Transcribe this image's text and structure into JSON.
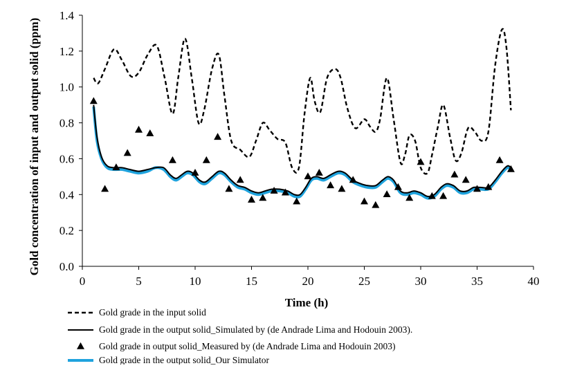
{
  "chart_data": {
    "type": "line",
    "title": "",
    "xlabel": "Time (h)",
    "ylabel": "Gold concentration of input and output solid (ppm)",
    "xlim": [
      0,
      40
    ],
    "ylim": [
      0,
      1.4
    ],
    "x_ticks": [
      "0",
      "5",
      "10",
      "15",
      "20",
      "25",
      "30",
      "35",
      "40"
    ],
    "y_ticks": [
      "0.0",
      "0.2",
      "0.4",
      "0.6",
      "0.8",
      "1.0",
      "1.2",
      "1.4"
    ],
    "grid": false,
    "legend_position": "bottom",
    "series": [
      {
        "name": "Gold grade in the input solid",
        "style": "dashed",
        "color": "#000000",
        "points": [
          [
            1,
            1.05
          ],
          [
            1.4,
            1.02
          ],
          [
            2,
            1.1
          ],
          [
            2.8,
            1.21
          ],
          [
            3.5,
            1.15
          ],
          [
            4.3,
            1.06
          ],
          [
            5,
            1.08
          ],
          [
            5.8,
            1.18
          ],
          [
            6.6,
            1.23
          ],
          [
            7.3,
            1.05
          ],
          [
            8,
            0.85
          ],
          [
            8.5,
            1.05
          ],
          [
            9.1,
            1.27
          ],
          [
            9.7,
            1.05
          ],
          [
            10.3,
            0.8
          ],
          [
            10.8,
            0.87
          ],
          [
            11.5,
            1.1
          ],
          [
            12.1,
            1.18
          ],
          [
            12.6,
            0.95
          ],
          [
            13.2,
            0.7
          ],
          [
            14,
            0.65
          ],
          [
            14.8,
            0.61
          ],
          [
            15.4,
            0.7
          ],
          [
            16,
            0.8
          ],
          [
            16.6,
            0.76
          ],
          [
            17.3,
            0.71
          ],
          [
            18,
            0.69
          ],
          [
            18.6,
            0.55
          ],
          [
            19.2,
            0.55
          ],
          [
            19.7,
            0.85
          ],
          [
            20.2,
            1.05
          ],
          [
            20.6,
            0.92
          ],
          [
            21.1,
            0.86
          ],
          [
            21.7,
            1.05
          ],
          [
            22.4,
            1.1
          ],
          [
            22.9,
            1.05
          ],
          [
            23.5,
            0.88
          ],
          [
            24.2,
            0.77
          ],
          [
            25,
            0.82
          ],
          [
            25.5,
            0.78
          ],
          [
            26,
            0.75
          ],
          [
            26.4,
            0.82
          ],
          [
            27,
            1.05
          ],
          [
            27.6,
            0.82
          ],
          [
            28.2,
            0.58
          ],
          [
            28.6,
            0.62
          ],
          [
            29,
            0.73
          ],
          [
            29.5,
            0.7
          ],
          [
            30,
            0.55
          ],
          [
            30.6,
            0.52
          ],
          [
            31,
            0.62
          ],
          [
            31.5,
            0.77
          ],
          [
            32,
            0.9
          ],
          [
            32.6,
            0.72
          ],
          [
            33.1,
            0.59
          ],
          [
            33.6,
            0.63
          ],
          [
            34.2,
            0.77
          ],
          [
            34.8,
            0.75
          ],
          [
            35.4,
            0.7
          ],
          [
            36,
            0.75
          ],
          [
            36.6,
            1.12
          ],
          [
            37.2,
            1.32
          ],
          [
            37.6,
            1.22
          ],
          [
            38,
            0.87
          ]
        ]
      },
      {
        "name": "Gold grade in the output solid_Simulated by (de Andrade Lima and Hodouin 2003).",
        "style": "solid",
        "color": "#000000",
        "points": [
          [
            1,
            0.9
          ],
          [
            1.3,
            0.72
          ],
          [
            1.7,
            0.61
          ],
          [
            2.2,
            0.56
          ],
          [
            2.8,
            0.55
          ],
          [
            3.5,
            0.55
          ],
          [
            4.2,
            0.54
          ],
          [
            5,
            0.53
          ],
          [
            5.8,
            0.54
          ],
          [
            6.5,
            0.55
          ],
          [
            7.2,
            0.55
          ],
          [
            7.8,
            0.51
          ],
          [
            8.3,
            0.49
          ],
          [
            8.8,
            0.51
          ],
          [
            9.3,
            0.53
          ],
          [
            9.8,
            0.52
          ],
          [
            10.4,
            0.48
          ],
          [
            10.9,
            0.47
          ],
          [
            11.5,
            0.5
          ],
          [
            12.1,
            0.53
          ],
          [
            12.6,
            0.52
          ],
          [
            13.2,
            0.48
          ],
          [
            13.8,
            0.45
          ],
          [
            14.4,
            0.44
          ],
          [
            15,
            0.42
          ],
          [
            15.6,
            0.41
          ],
          [
            16.2,
            0.42
          ],
          [
            16.8,
            0.43
          ],
          [
            17.5,
            0.43
          ],
          [
            18.2,
            0.42
          ],
          [
            18.8,
            0.4
          ],
          [
            19.3,
            0.4
          ],
          [
            19.8,
            0.44
          ],
          [
            20.3,
            0.49
          ],
          [
            20.8,
            0.5
          ],
          [
            21.4,
            0.49
          ],
          [
            22,
            0.51
          ],
          [
            22.7,
            0.53
          ],
          [
            23.3,
            0.52
          ],
          [
            24,
            0.48
          ],
          [
            24.7,
            0.46
          ],
          [
            25.3,
            0.45
          ],
          [
            26,
            0.45
          ],
          [
            26.6,
            0.48
          ],
          [
            27.1,
            0.5
          ],
          [
            27.6,
            0.48
          ],
          [
            28.2,
            0.42
          ],
          [
            28.8,
            0.41
          ],
          [
            29.4,
            0.42
          ],
          [
            30,
            0.41
          ],
          [
            30.6,
            0.39
          ],
          [
            31.2,
            0.4
          ],
          [
            31.8,
            0.44
          ],
          [
            32.3,
            0.46
          ],
          [
            32.9,
            0.45
          ],
          [
            33.5,
            0.42
          ],
          [
            34.1,
            0.42
          ],
          [
            34.7,
            0.44
          ],
          [
            35.3,
            0.44
          ],
          [
            36,
            0.44
          ],
          [
            36.6,
            0.48
          ],
          [
            37.2,
            0.53
          ],
          [
            37.7,
            0.56
          ],
          [
            38,
            0.55
          ]
        ]
      },
      {
        "name": "Gold grade in output solid_Measured by (de Andrade Lima and Hodouin 2003)",
        "style": "marker-triangle",
        "color": "#000000",
        "points": [
          [
            1,
            0.92
          ],
          [
            2,
            0.43
          ],
          [
            3,
            0.55
          ],
          [
            4,
            0.63
          ],
          [
            5,
            0.76
          ],
          [
            6,
            0.74
          ],
          [
            8,
            0.59
          ],
          [
            10,
            0.52
          ],
          [
            11,
            0.59
          ],
          [
            12,
            0.72
          ],
          [
            13,
            0.43
          ],
          [
            14,
            0.48
          ],
          [
            15,
            0.37
          ],
          [
            16,
            0.38
          ],
          [
            17,
            0.42
          ],
          [
            18,
            0.41
          ],
          [
            19,
            0.36
          ],
          [
            20,
            0.5
          ],
          [
            21,
            0.52
          ],
          [
            22,
            0.45
          ],
          [
            23,
            0.43
          ],
          [
            24,
            0.48
          ],
          [
            25,
            0.36
          ],
          [
            26,
            0.34
          ],
          [
            27,
            0.4
          ],
          [
            28,
            0.44
          ],
          [
            29,
            0.38
          ],
          [
            30,
            0.58
          ],
          [
            31,
            0.39
          ],
          [
            32,
            0.39
          ],
          [
            33,
            0.51
          ],
          [
            34,
            0.48
          ],
          [
            35,
            0.43
          ],
          [
            36,
            0.44
          ],
          [
            37,
            0.59
          ],
          [
            38,
            0.54
          ]
        ]
      },
      {
        "name": "Gold grade in the output solid_Our Simulator",
        "style": "solid-thick",
        "color": "#1fa3dd",
        "points": [
          [
            1,
            0.89
          ],
          [
            1.3,
            0.7
          ],
          [
            1.7,
            0.6
          ],
          [
            2.2,
            0.55
          ],
          [
            2.8,
            0.54
          ],
          [
            3.5,
            0.54
          ],
          [
            4.2,
            0.53
          ],
          [
            5,
            0.52
          ],
          [
            5.8,
            0.53
          ],
          [
            6.5,
            0.55
          ],
          [
            7.2,
            0.54
          ],
          [
            7.8,
            0.5
          ],
          [
            8.3,
            0.48
          ],
          [
            8.8,
            0.5
          ],
          [
            9.3,
            0.52
          ],
          [
            9.8,
            0.51
          ],
          [
            10.4,
            0.47
          ],
          [
            10.9,
            0.46
          ],
          [
            11.5,
            0.49
          ],
          [
            12.1,
            0.52
          ],
          [
            12.6,
            0.51
          ],
          [
            13.2,
            0.47
          ],
          [
            13.8,
            0.44
          ],
          [
            14.4,
            0.43
          ],
          [
            15,
            0.41
          ],
          [
            15.6,
            0.4
          ],
          [
            16.2,
            0.41
          ],
          [
            16.8,
            0.42
          ],
          [
            17.5,
            0.42
          ],
          [
            18.2,
            0.41
          ],
          [
            18.8,
            0.39
          ],
          [
            19.3,
            0.39
          ],
          [
            19.8,
            0.43
          ],
          [
            20.3,
            0.48
          ],
          [
            20.8,
            0.49
          ],
          [
            21.4,
            0.48
          ],
          [
            22,
            0.5
          ],
          [
            22.7,
            0.52
          ],
          [
            23.3,
            0.51
          ],
          [
            24,
            0.47
          ],
          [
            24.7,
            0.45
          ],
          [
            25.3,
            0.44
          ],
          [
            26,
            0.44
          ],
          [
            26.6,
            0.47
          ],
          [
            27.1,
            0.49
          ],
          [
            27.6,
            0.47
          ],
          [
            28.2,
            0.41
          ],
          [
            28.8,
            0.4
          ],
          [
            29.4,
            0.41
          ],
          [
            30,
            0.4
          ],
          [
            30.6,
            0.38
          ],
          [
            31.2,
            0.39
          ],
          [
            31.8,
            0.43
          ],
          [
            32.3,
            0.45
          ],
          [
            32.9,
            0.44
          ],
          [
            33.5,
            0.41
          ],
          [
            34.1,
            0.41
          ],
          [
            34.7,
            0.43
          ],
          [
            35.3,
            0.43
          ],
          [
            36,
            0.43
          ],
          [
            36.6,
            0.47
          ],
          [
            37.2,
            0.52
          ],
          [
            37.7,
            0.55
          ],
          [
            38,
            0.54
          ]
        ]
      }
    ]
  }
}
